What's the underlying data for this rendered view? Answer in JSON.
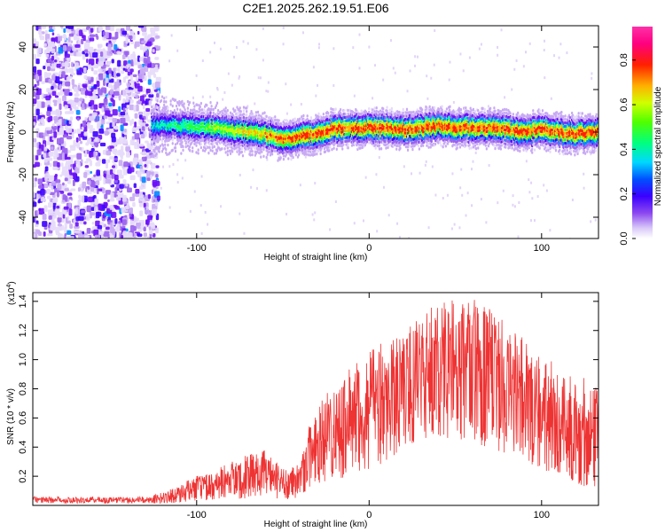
{
  "title": "C2E1.2025.262.19.51.E06",
  "chart_data": [
    {
      "type": "heatmap",
      "xlabel": "Height of straight line (km)",
      "ylabel": "Frequency (Hz)",
      "xlim": [
        -195,
        133
      ],
      "ylim": [
        -50,
        50
      ],
      "x_ticks": [
        {
          "v": -100,
          "label": "-100"
        },
        {
          "v": 0,
          "label": "0"
        },
        {
          "v": 100,
          "label": "100"
        }
      ],
      "y_ticks": [
        {
          "v": 40,
          "label": "40"
        },
        {
          "v": 20,
          "label": "20"
        },
        {
          "v": 0,
          "label": "0"
        },
        {
          "v": -20,
          "label": "-20"
        },
        {
          "v": -40,
          "label": "-40"
        }
      ],
      "colorbar": {
        "label": "Normalized spectral amplitude",
        "range": [
          0,
          0.95
        ],
        "ticks": [
          {
            "v": 0.0,
            "label": "0.0"
          },
          {
            "v": 0.2,
            "label": "0.2"
          },
          {
            "v": 0.4,
            "label": "0.4"
          },
          {
            "v": 0.6,
            "label": "0.6"
          },
          {
            "v": 0.8,
            "label": "0.8"
          }
        ]
      },
      "noise_region_x": [
        -195,
        -122
      ],
      "ridge": {
        "x": [
          -122,
          -110,
          -100,
          -90,
          -80,
          -70,
          -60,
          -50,
          -45,
          -40,
          -35,
          -30,
          -25,
          -20,
          -10,
          0,
          10,
          20,
          30,
          40,
          50,
          60,
          70,
          80,
          90,
          100,
          110,
          120,
          133
        ],
        "y": [
          3,
          3,
          2,
          2,
          1,
          0,
          -1,
          -4,
          -3,
          -2,
          -1,
          -1,
          1,
          2,
          2,
          2,
          2,
          1,
          2,
          3,
          2,
          2,
          2,
          1,
          0,
          1,
          0,
          -1,
          0
        ]
      }
    },
    {
      "type": "line",
      "xlabel": "Height of straight line (km)",
      "ylabel": "SNR (10 * v/v)",
      "y_scale_label": "(x10",
      "y_scale_exp": "4",
      "xlim": [
        -195,
        133
      ],
      "ylim": [
        0,
        14600
      ],
      "color": "#ee3333",
      "x_ticks": [
        {
          "v": -100,
          "label": "-100"
        },
        {
          "v": 0,
          "label": "0"
        },
        {
          "v": 100,
          "label": "100"
        }
      ],
      "y_ticks": [
        {
          "v": 2000,
          "label": "0.2"
        },
        {
          "v": 4000,
          "label": "0.4"
        },
        {
          "v": 6000,
          "label": "0.6"
        },
        {
          "v": 8000,
          "label": "0.8"
        },
        {
          "v": 10000,
          "label": "1.0"
        },
        {
          "v": 12000,
          "label": "1.2"
        },
        {
          "v": 14000,
          "label": "1.4"
        }
      ],
      "envelope": {
        "x": [
          -195,
          -130,
          -122,
          -110,
          -100,
          -90,
          -80,
          -70,
          -60,
          -50,
          -40,
          -35,
          -30,
          -20,
          -10,
          0,
          10,
          20,
          30,
          40,
          50,
          60,
          70,
          80,
          90,
          100,
          110,
          120,
          133
        ],
        "base": [
          0,
          0,
          100,
          200,
          300,
          400,
          400,
          500,
          600,
          400,
          500,
          1200,
          1500,
          1800,
          2000,
          2500,
          3000,
          4000,
          4500,
          4800,
          4500,
          4200,
          4000,
          3500,
          3000,
          2500,
          2000,
          1500,
          1000
        ],
        "peak": [
          500,
          600,
          800,
          1400,
          2000,
          2500,
          3000,
          3500,
          3800,
          2500,
          3000,
          6000,
          7000,
          8500,
          9500,
          10500,
          11500,
          12000,
          13000,
          14000,
          14200,
          14300,
          13500,
          12500,
          11500,
          10500,
          9500,
          9000,
          8500
        ]
      }
    }
  ]
}
